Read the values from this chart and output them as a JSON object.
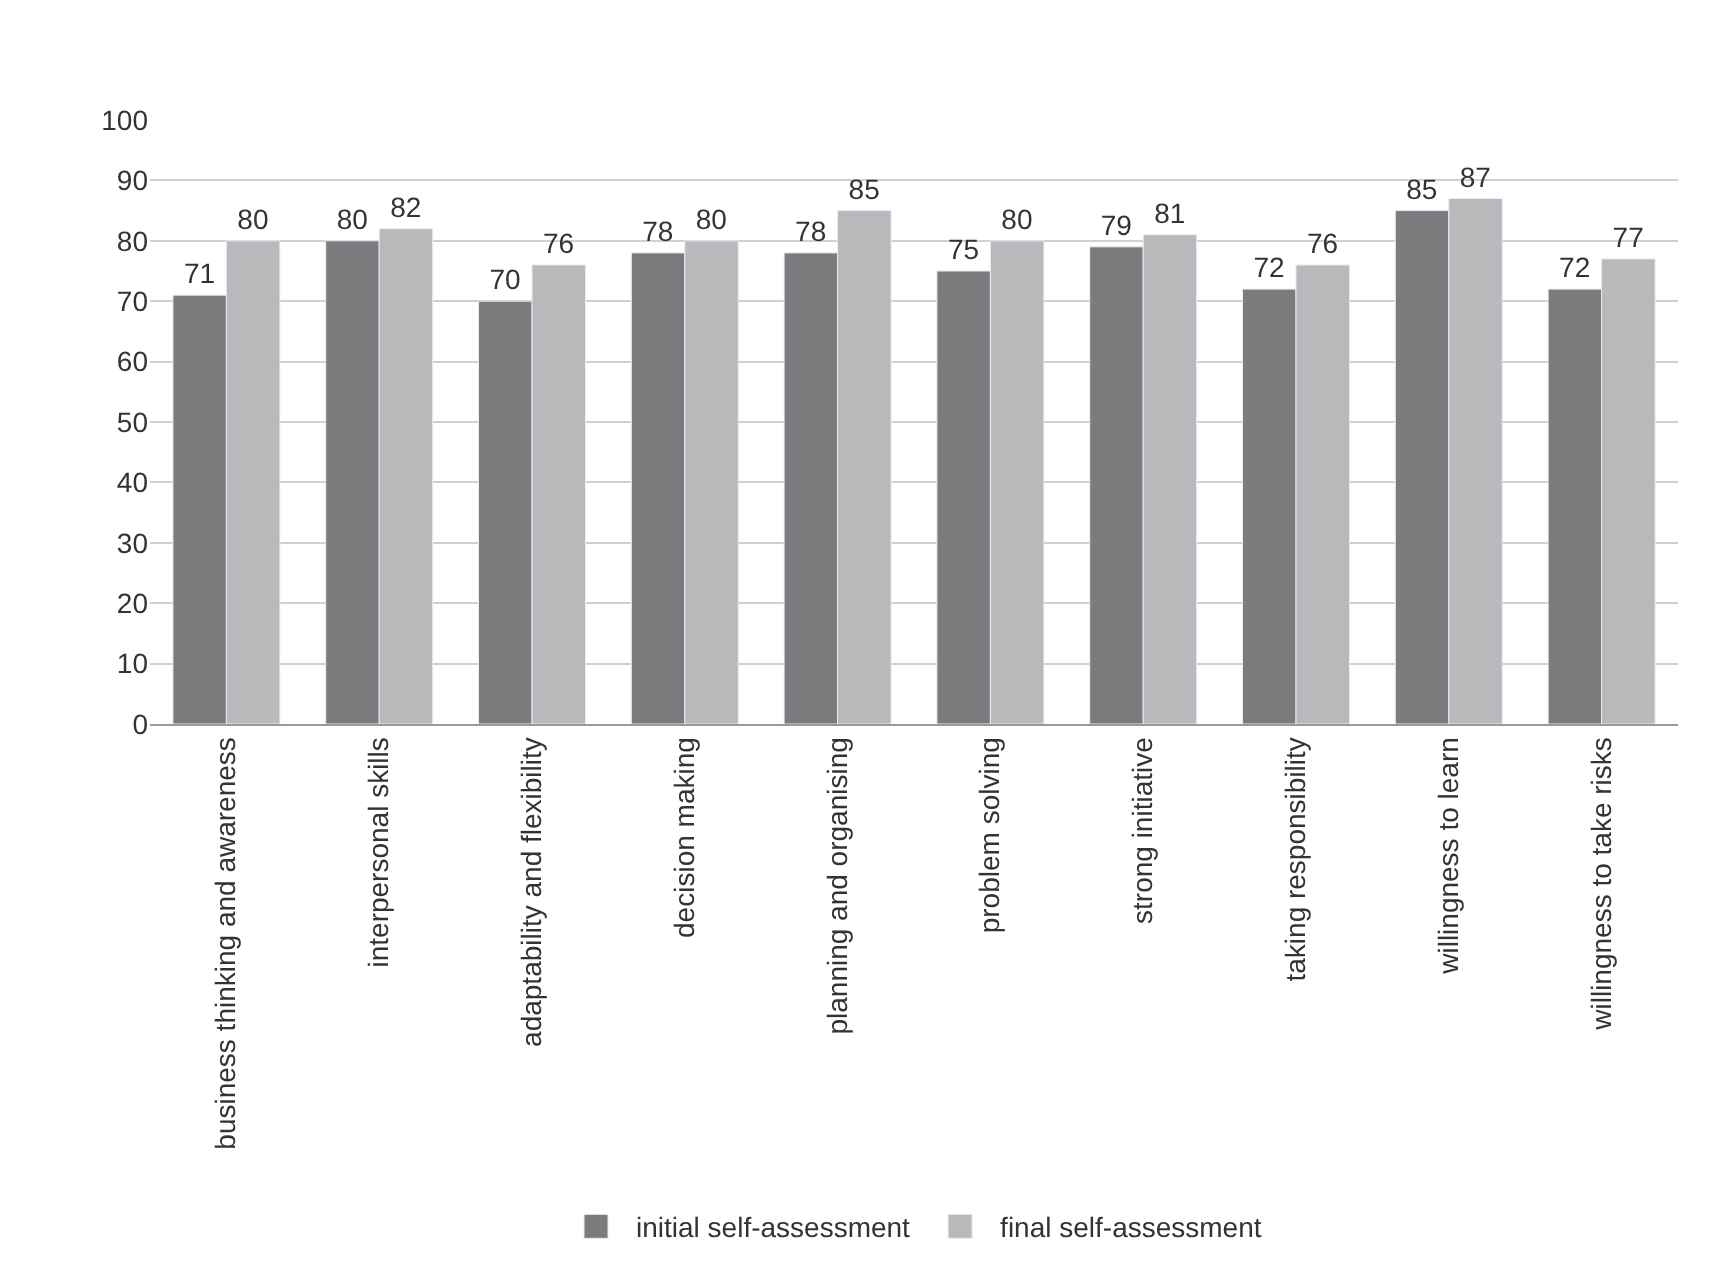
{
  "chart_data": {
    "type": "bar",
    "categories": [
      "business thinking and awareness",
      "interpersonal skills",
      "adaptability and flexibility",
      "decision making",
      "planning and organising",
      "problem solving",
      "strong initiative",
      "taking responsibility",
      "willingness to learn",
      "willingness to take risks"
    ],
    "series": [
      {
        "name": "initial self-assessment",
        "color": "#7b7b7d",
        "values": [
          71,
          80,
          70,
          78,
          78,
          75,
          79,
          72,
          85,
          72
        ]
      },
      {
        "name": "final self-assessment",
        "color": "#b9b9bb",
        "values": [
          80,
          82,
          76,
          80,
          85,
          80,
          81,
          76,
          87,
          77
        ]
      }
    ],
    "ylim": [
      0,
      100
    ],
    "yticks": [
      0,
      10,
      20,
      30,
      40,
      50,
      60,
      70,
      80,
      90,
      100
    ],
    "grid": "y",
    "legend": "bottom",
    "data_labels": true
  }
}
